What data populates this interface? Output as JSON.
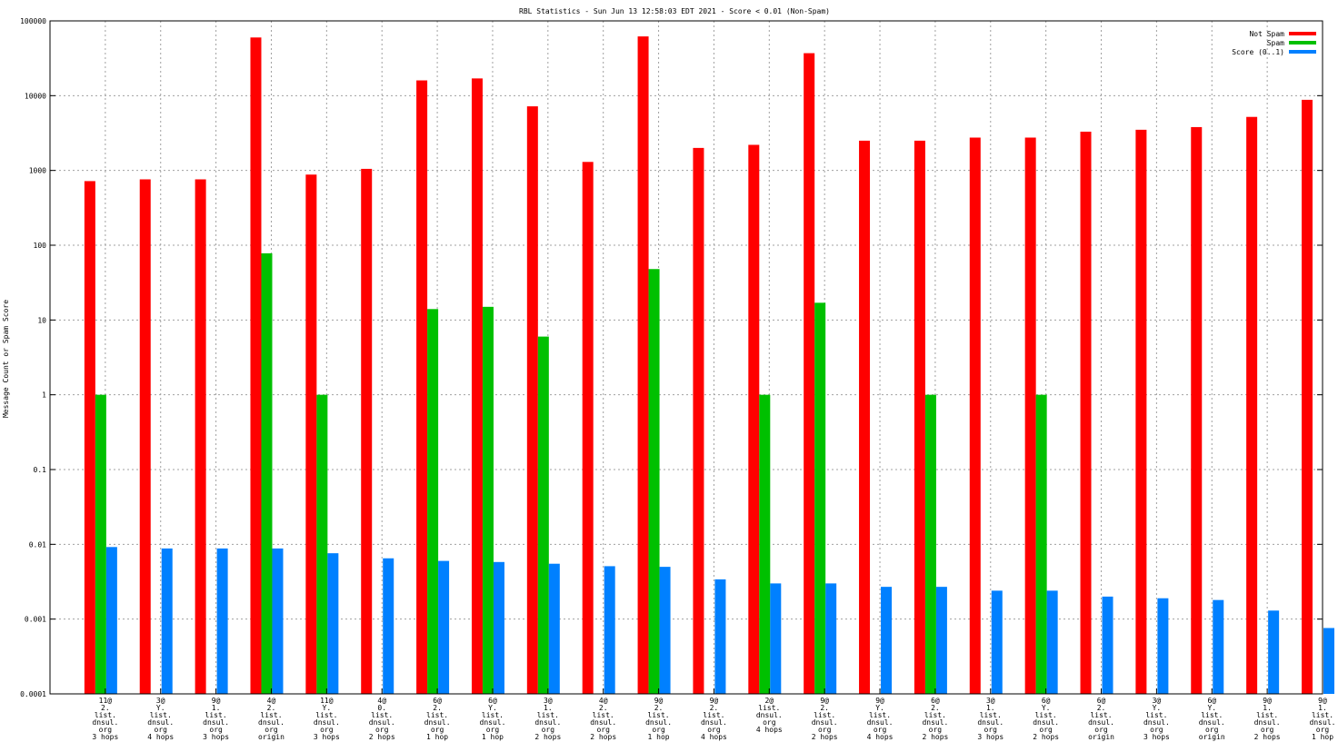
{
  "chart_data": {
    "type": "bar",
    "title": "RBL Statistics - Sun Jun 13 12:58:03 EDT 2021 - Score < 0.01 (Non-Spam)",
    "ylabel": "Message Count or Spam Score",
    "xlabel": "",
    "yscale": "log",
    "ylim": [
      0.0001,
      100000
    ],
    "yticks": [
      "0.0001",
      "0.001",
      "0.01",
      "0.1",
      "1",
      "10",
      "100",
      "1000",
      "10000",
      "100000"
    ],
    "grid": true,
    "legend_position": "top-right",
    "categories": [
      [
        "11@",
        "2.",
        "list.",
        "dnsul.",
        "org",
        "3 hops"
      ],
      [
        "3@",
        "Y.",
        "list.",
        "dnsul.",
        "org",
        "4 hops"
      ],
      [
        "9@",
        "1.",
        "list.",
        "dnsul.",
        "org",
        "3 hops"
      ],
      [
        "4@",
        "2.",
        "list.",
        "dnsul.",
        "org",
        "origin"
      ],
      [
        "11@",
        "Y.",
        "list.",
        "dnsul.",
        "org",
        "3 hops"
      ],
      [
        "4@",
        "0.",
        "list.",
        "dnsul.",
        "org",
        "2 hops"
      ],
      [
        "6@",
        "2.",
        "list.",
        "dnsul.",
        "org",
        "1 hop"
      ],
      [
        "6@",
        "Y.",
        "list.",
        "dnsul.",
        "org",
        "1 hop"
      ],
      [
        "3@",
        "1.",
        "list.",
        "dnsul.",
        "org",
        "2 hops"
      ],
      [
        "4@",
        "2.",
        "list.",
        "dnsul.",
        "org",
        "2 hops"
      ],
      [
        "9@",
        "2.",
        "list.",
        "dnsul.",
        "org",
        "1 hop"
      ],
      [
        "9@",
        "2.",
        "list.",
        "dnsul.",
        "org",
        "4 hops"
      ],
      [
        "2@",
        "list.",
        "dnsul.",
        "org",
        "4 hops"
      ],
      [
        "9@",
        "2.",
        "list.",
        "dnsul.",
        "org",
        "2 hops"
      ],
      [
        "9@",
        "Y.",
        "list.",
        "dnsul.",
        "org",
        "4 hops"
      ],
      [
        "6@",
        "2.",
        "list.",
        "dnsul.",
        "org",
        "2 hops"
      ],
      [
        "3@",
        "1.",
        "list.",
        "dnsul.",
        "org",
        "3 hops"
      ],
      [
        "6@",
        "Y.",
        "list.",
        "dnsul.",
        "org",
        "2 hops"
      ],
      [
        "6@",
        "2.",
        "list.",
        "dnsul.",
        "org",
        "origin"
      ],
      [
        "3@",
        "Y.",
        "list.",
        "dnsul.",
        "org",
        "3 hops"
      ],
      [
        "6@",
        "Y.",
        "list.",
        "dnsul.",
        "org",
        "origin"
      ],
      [
        "9@",
        "1.",
        "list.",
        "dnsul.",
        "org",
        "2 hops"
      ],
      [
        "9@",
        "1.",
        "list.",
        "dnsul.",
        "org",
        "1 hop"
      ]
    ],
    "series": [
      {
        "name": "Not Spam",
        "color": "#ff0000",
        "values": [
          720,
          760,
          760,
          60000,
          880,
          1050,
          16000,
          17000,
          7200,
          1300,
          62000,
          2000,
          2200,
          37000,
          2500,
          2500,
          2750,
          2750,
          3300,
          3500,
          3800,
          5200,
          8800
        ]
      },
      {
        "name": "Spam",
        "color": "#00c000",
        "values": [
          1,
          null,
          null,
          78,
          1,
          null,
          14,
          15,
          6,
          null,
          48,
          null,
          1,
          17,
          null,
          1,
          null,
          1,
          null,
          null,
          null,
          null,
          null
        ]
      },
      {
        "name": "Score (0..1)",
        "color": "#0080ff",
        "values": [
          0.0092,
          0.0088,
          0.0088,
          0.0088,
          0.0076,
          0.0065,
          0.006,
          0.0058,
          0.0055,
          0.0051,
          0.005,
          0.0034,
          0.003,
          0.003,
          0.0027,
          0.0027,
          0.0024,
          0.0024,
          0.002,
          0.0019,
          0.0018,
          0.0013,
          0.00076
        ]
      }
    ]
  }
}
